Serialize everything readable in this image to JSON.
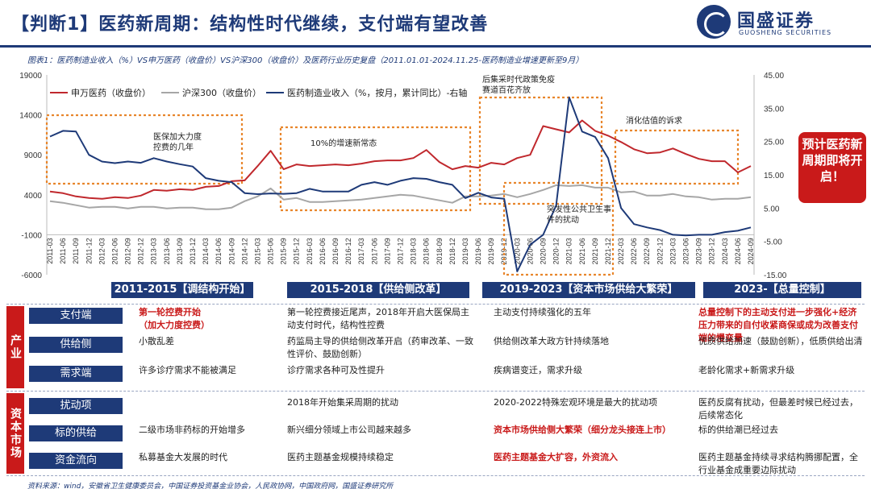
{
  "header": {
    "title": "【判断1】医药新周期：结构性时代继续，支付端有望改善",
    "logo_cn": "国盛证券",
    "logo_en": "GUOSHENG SECURITIES"
  },
  "caption": "图表1：医药制造业收入（%）VS申万医药（收盘价）VS沪深300（收盘价）及医药行业历史复盘（2011.01.01-2024.11.25-医药制造业增速更新至9月）",
  "chart_data": {
    "type": "line",
    "x": [
      "2011-03",
      "2011-06",
      "2011-09",
      "2011-12",
      "2012-03",
      "2012-06",
      "2012-09",
      "2012-12",
      "2013-03",
      "2013-06",
      "2013-09",
      "2013-12",
      "2014-03",
      "2014-06",
      "2014-09",
      "2014-12",
      "2015-03",
      "2015-06",
      "2015-09",
      "2015-12",
      "2016-03",
      "2016-06",
      "2016-09",
      "2016-12",
      "2017-03",
      "2017-06",
      "2017-09",
      "2017-12",
      "2018-03",
      "2018-06",
      "2018-09",
      "2018-12",
      "2019-03",
      "2019-06",
      "2019-09",
      "2019-12",
      "2020-03",
      "2020-06",
      "2020-09",
      "2020-12",
      "2021-03",
      "2021-06",
      "2021-09",
      "2021-12",
      "2022-03",
      "2022-06",
      "2022-09",
      "2022-12",
      "2023-03",
      "2023-06",
      "2023-09",
      "2023-12",
      "2024-03",
      "2024-06",
      "2024-09"
    ],
    "y_left_ticks": [
      "19000",
      "14000",
      "9000",
      "4000",
      "-1000",
      "-6000"
    ],
    "y_left_range": [
      -6000,
      19000
    ],
    "y_right_ticks": [
      "45.00",
      "35.00",
      "25.00",
      "15.00",
      "5.00",
      "-5.00",
      "-15.00"
    ],
    "y_right_range": [
      -15,
      45
    ],
    "series": [
      {
        "name": "申万医药（收盘价）",
        "axis": "left",
        "color": "#c0282d",
        "values": [
          4400,
          4200,
          3800,
          3600,
          3500,
          3700,
          3600,
          3900,
          4600,
          4500,
          4700,
          4600,
          5000,
          5100,
          5700,
          5800,
          7600,
          9500,
          7200,
          7800,
          7600,
          7700,
          7800,
          7700,
          7900,
          8200,
          8300,
          8300,
          8600,
          9600,
          8100,
          7200,
          7600,
          7400,
          8000,
          7800,
          8600,
          9000,
          12600,
          12200,
          11800,
          13300,
          12000,
          11400,
          10600,
          9700,
          9200,
          9300,
          9800,
          9100,
          8500,
          8200,
          8200,
          6800,
          7600
        ]
      },
      {
        "name": "沪深300（收盘价）",
        "axis": "left",
        "color": "#a6a6a6",
        "values": [
          3200,
          3000,
          2700,
          2400,
          2500,
          2500,
          2300,
          2500,
          2500,
          2300,
          2400,
          2400,
          2200,
          2200,
          2400,
          3200,
          3800,
          4800,
          3400,
          3600,
          3100,
          3100,
          3200,
          3300,
          3400,
          3600,
          3800,
          4000,
          3900,
          3600,
          3300,
          3000,
          3800,
          3800,
          3900,
          4100,
          3700,
          4100,
          4600,
          5200,
          5100,
          5200,
          4900,
          4900,
          4300,
          4400,
          3900,
          3900,
          4100,
          3800,
          3700,
          3400,
          3500,
          3500,
          3700
        ]
      },
      {
        "name": "医药制造业收入（%，按月，累计同比）-右轴",
        "axis": "right",
        "color": "#1e3a78",
        "values": [
          26.5,
          28.2,
          28,
          21,
          19,
          18.5,
          19,
          18.6,
          20,
          19,
          18.2,
          17.5,
          14,
          13.2,
          12.8,
          9.5,
          9.2,
          9.4,
          9.3,
          9.5,
          10.8,
          10,
          10,
          10,
          12,
          12.8,
          12,
          13.2,
          14,
          13.8,
          12.8,
          12,
          8,
          9.6,
          8.2,
          7.8,
          -14,
          -6,
          -3,
          5.8,
          38.3,
          28,
          26.4,
          20,
          5,
          0.2,
          -0.8,
          -1.6,
          -3,
          -3.2,
          -3,
          -3,
          -2.2,
          -1.8,
          -0.8
        ]
      }
    ],
    "annotations": [
      {
        "text": "医保加大力度控费的几年"
      },
      {
        "text": "10%的增速新常态"
      },
      {
        "text": "后集采时代政策免疫赛道百花齐放"
      },
      {
        "text": "突发性公共卫生事件的扰动"
      },
      {
        "text": "消化估值的诉求"
      }
    ],
    "grid": false,
    "legend": "top-left"
  },
  "forecast_badge": "预计医药新周期即将开启！",
  "table": {
    "phases": [
      "2011-2015【调结构开始】",
      "2015-2018【供给侧改革】",
      "2019-2023【资本市场供给大繁荣】",
      "2023-【总量控制】"
    ],
    "groups": [
      "产业",
      "资本市场"
    ],
    "rows": [
      {
        "label": "支付端",
        "cells": [
          "第一轮控费开始\n（加大力度控费）",
          "第一轮控费接近尾声，2018年开启大医保局主动支付时代，结构性控费",
          "主动支付持续强化的五年",
          "总量控制下的主动支付进一步强化+经济压力带来的自付收紧商保或成为改善支付端的慢变量"
        ]
      },
      {
        "label": "供给侧",
        "cells": [
          "小散乱差",
          "药监局主导的供给侧改革开启（药审改革、一致性评价、鼓励创新）",
          "供给侧改革大政方针持续落地",
          "优质供给加速（鼓励创新），低质供给出清"
        ]
      },
      {
        "label": "需求端",
        "cells": [
          "许多诊疗需求不能被满足",
          "诊疗需求各种可及性提升",
          "疾病谱变迁，需求升级",
          "老龄化需求+新需求升级"
        ]
      },
      {
        "label": "扰动项",
        "cells": [
          "",
          "2018年开始集采周期的扰动",
          "2020-2022特殊宏观环境是最大的扰动项",
          "医药反腐有扰动，但最差时候已经过去，后续常态化"
        ]
      },
      {
        "label": "标的供给",
        "cells": [
          "二级市场非药标的开始增多",
          "新兴细分领域上市公司越来越多",
          "资本市场供给侧大繁荣（细分龙头接连上市）",
          "标的供给潮已经过去"
        ]
      },
      {
        "label": "资金流向",
        "cells": [
          "私募基金大发展的时代",
          "医药主题基金规模持续稳定",
          "医药主题基金大扩容，外资流入",
          "医药主题基金持续寻求结构腾挪配置，全行业基金成重要边际扰动"
        ]
      }
    ]
  },
  "source": "资料来源：wind，安徽省卫生健康委员会，中国证券投资基金业协会，人民政协网，中国政府网，国盛证券研究所"
}
